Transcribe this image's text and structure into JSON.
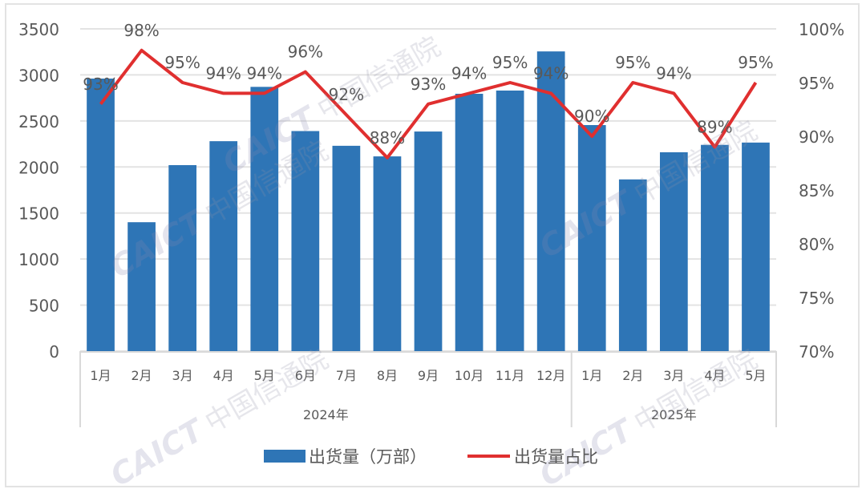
{
  "chart_data": {
    "type": "bar+line",
    "title": "",
    "xlabel": "",
    "ylabel": "",
    "groups": [
      {
        "label": "2024年",
        "months": [
          "1月",
          "2月",
          "3月",
          "4月",
          "5月",
          "6月",
          "7月",
          "8月",
          "9月",
          "10月",
          "11月",
          "12月"
        ]
      },
      {
        "label": "2025年",
        "months": [
          "1月",
          "2月",
          "3月",
          "4月",
          "5月"
        ]
      }
    ],
    "categories": [
      "2024-1月",
      "2024-2月",
      "2024-3月",
      "2024-4月",
      "2024-5月",
      "2024-6月",
      "2024-7月",
      "2024-8月",
      "2024-9月",
      "2024-10月",
      "2024-11月",
      "2024-12月",
      "2025-1月",
      "2025-2月",
      "2025-3月",
      "2025-4月",
      "2025-5月"
    ],
    "series": [
      {
        "name": "出货量（万部）",
        "type": "bar",
        "axis": "left",
        "color": "#2e75b6",
        "values": [
          2960,
          1400,
          2020,
          2280,
          2870,
          2390,
          2230,
          2115,
          2385,
          2795,
          2830,
          3255,
          2455,
          1865,
          2160,
          2240,
          2265
        ]
      },
      {
        "name": "出货量占比",
        "type": "line",
        "axis": "right",
        "color": "#e02f2f",
        "values": [
          93,
          98,
          95,
          94,
          94,
          96,
          92,
          88,
          93,
          94,
          95,
          94,
          90,
          95,
          94,
          89,
          95
        ],
        "labels": [
          "93%",
          "98%",
          "95%",
          "94%",
          "94%",
          "96%",
          "92%",
          "88%",
          "93%",
          "94%",
          "95%",
          "94%",
          "90%",
          "95%",
          "94%",
          "89%",
          "95%"
        ]
      }
    ],
    "left_axis": {
      "ylim": [
        0,
        3500
      ],
      "ticks": [
        "0",
        "500",
        "1000",
        "1500",
        "2000",
        "2500",
        "3000",
        "3500"
      ]
    },
    "right_axis": {
      "ylim": [
        70,
        100
      ],
      "ticks": [
        "70%",
        "75%",
        "80%",
        "85%",
        "90%",
        "95%",
        "100%"
      ]
    },
    "grid": true,
    "legend_position": "bottom",
    "watermark": "CAICT 中国信通院"
  },
  "legend": {
    "bar_label": "出货量（万部）",
    "line_label": "出货量占比"
  },
  "watermark": {
    "latin": "CAICT",
    "cjk": "中国信通院"
  }
}
